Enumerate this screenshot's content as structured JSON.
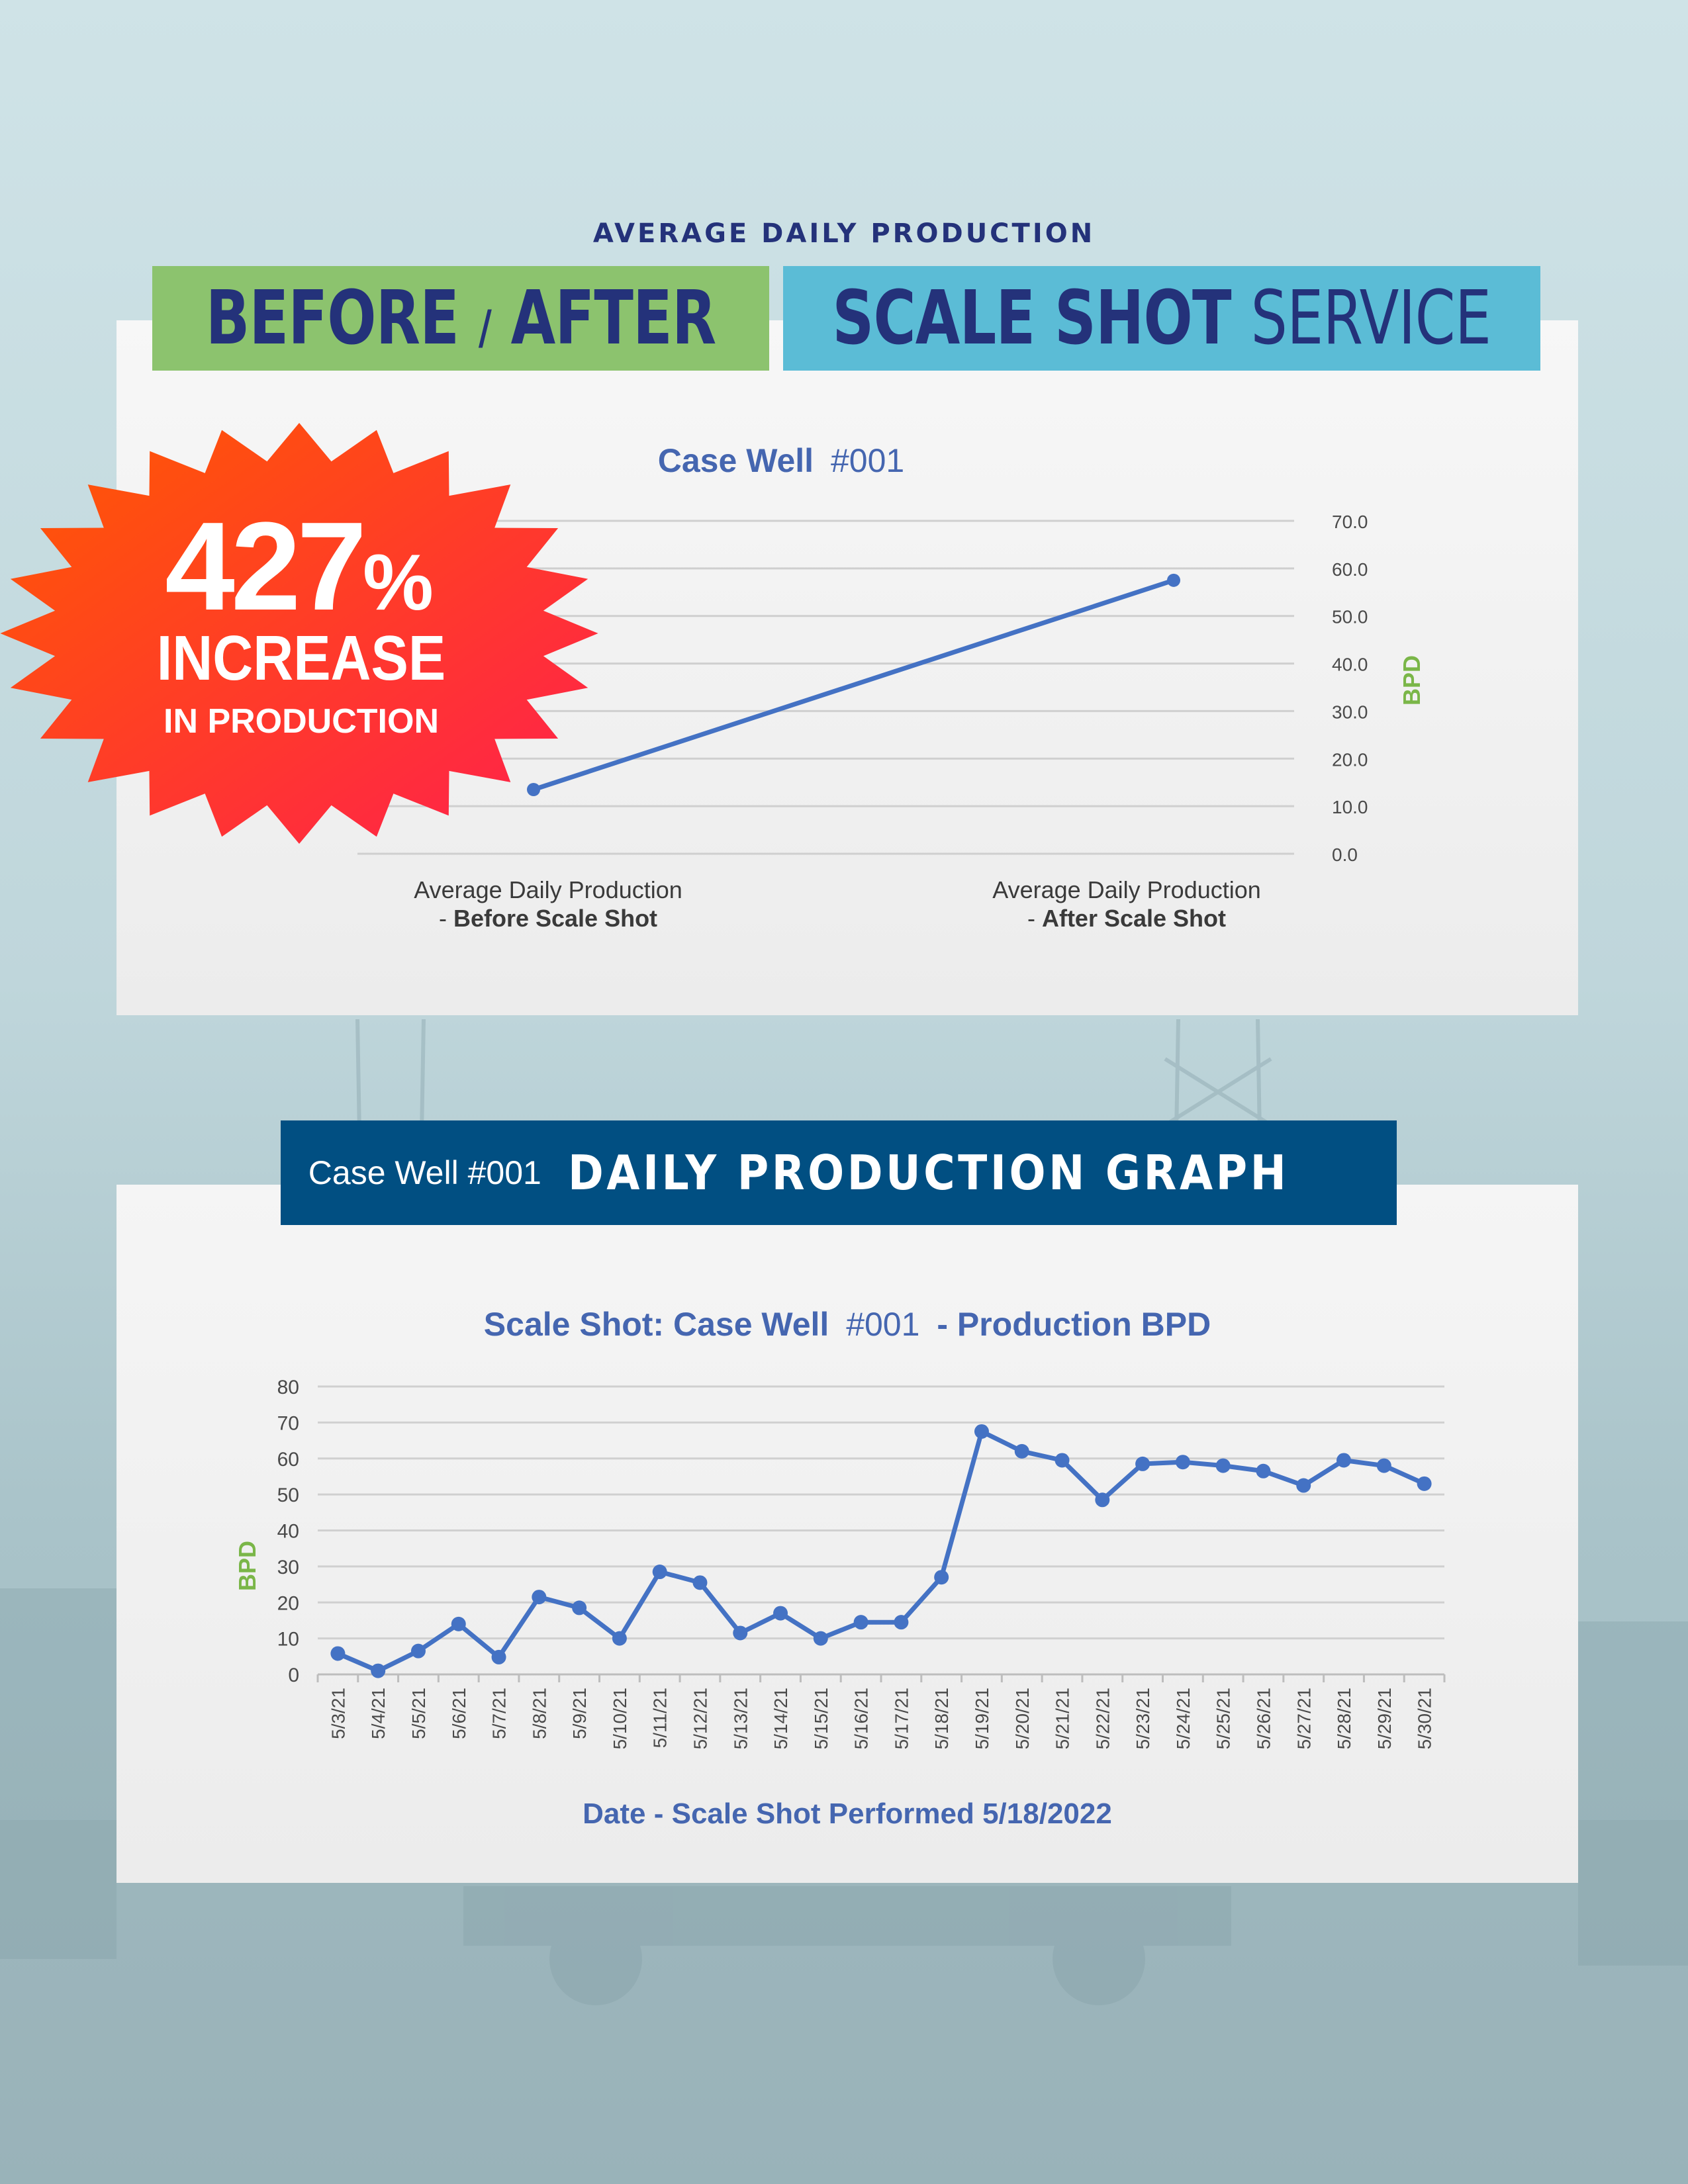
{
  "header": {
    "overline": "AVERAGE DAILY PRODUCTION",
    "banner_left": {
      "word1": "BEFORE",
      "slash": "/",
      "word2": "AFTER"
    },
    "banner_right": {
      "bold": "SCALE SHOT",
      "light": "SERVICE"
    }
  },
  "badge": {
    "number": "427",
    "percent": "%",
    "line1": "INCREASE",
    "line2": "IN PRODUCTION"
  },
  "section2": {
    "banner_small": "Case Well #001",
    "banner_big": "DAILY PRODUCTION GRAPH"
  },
  "colors": {
    "line": "#4472c4",
    "title_blue": "#4566b0",
    "axis_label_green": "#7ab648",
    "banner_navy": "#014f82",
    "banner_green": "#8cc36e",
    "banner_blue": "#5bbcd6",
    "badge_start": "#ff5a00",
    "badge_end": "#ff1f4e"
  },
  "chart_data": [
    {
      "type": "line",
      "title_bold": "Case Well",
      "title_light": "#001",
      "ylabel": "BPD",
      "ylim": [
        0,
        70
      ],
      "yticks": [
        "0.0",
        "10.0",
        "20.0",
        "30.0",
        "40.0",
        "50.0",
        "60.0",
        "70.0"
      ],
      "categories": [
        {
          "line1": "Average Daily Production",
          "line2_prefix": "- ",
          "line2_bold": "Before Scale Shot"
        },
        {
          "line1": "Average Daily Production",
          "line2_prefix": "- ",
          "line2_bold": "After Scale Shot"
        }
      ],
      "values": [
        13.5,
        57.5
      ],
      "grid": true
    },
    {
      "type": "line",
      "title_bold_1": "Scale Shot: Case Well",
      "title_light": "#001",
      "title_bold_2": "- Production BPD",
      "xlabel": "Date - Scale Shot Performed 5/18/2022",
      "ylabel": "BPD",
      "ylim": [
        0,
        80
      ],
      "yticks": [
        "0",
        "10",
        "20",
        "30",
        "40",
        "50",
        "60",
        "70",
        "80"
      ],
      "x": [
        "5/3/21",
        "5/4/21",
        "5/5/21",
        "5/6/21",
        "5/7/21",
        "5/8/21",
        "5/9/21",
        "5/10/21",
        "5/11/21",
        "5/12/21",
        "5/13/21",
        "5/14/21",
        "5/15/21",
        "5/16/21",
        "5/17/21",
        "5/18/21",
        "5/19/21",
        "5/20/21",
        "5/21/21",
        "5/22/21",
        "5/23/21",
        "5/24/21",
        "5/25/21",
        "5/26/21",
        "5/27/21",
        "5/28/21",
        "5/29/21",
        "5/30/21"
      ],
      "values": [
        5.8,
        1.0,
        6.5,
        14.0,
        4.8,
        21.5,
        18.5,
        10.0,
        28.5,
        25.5,
        11.5,
        17.0,
        10.0,
        14.5,
        14.5,
        27.0,
        67.5,
        62.0,
        59.5,
        48.5,
        58.5,
        59.0,
        58.0,
        56.5,
        52.5,
        59.5,
        58.0,
        53.0
      ],
      "grid": true
    }
  ]
}
